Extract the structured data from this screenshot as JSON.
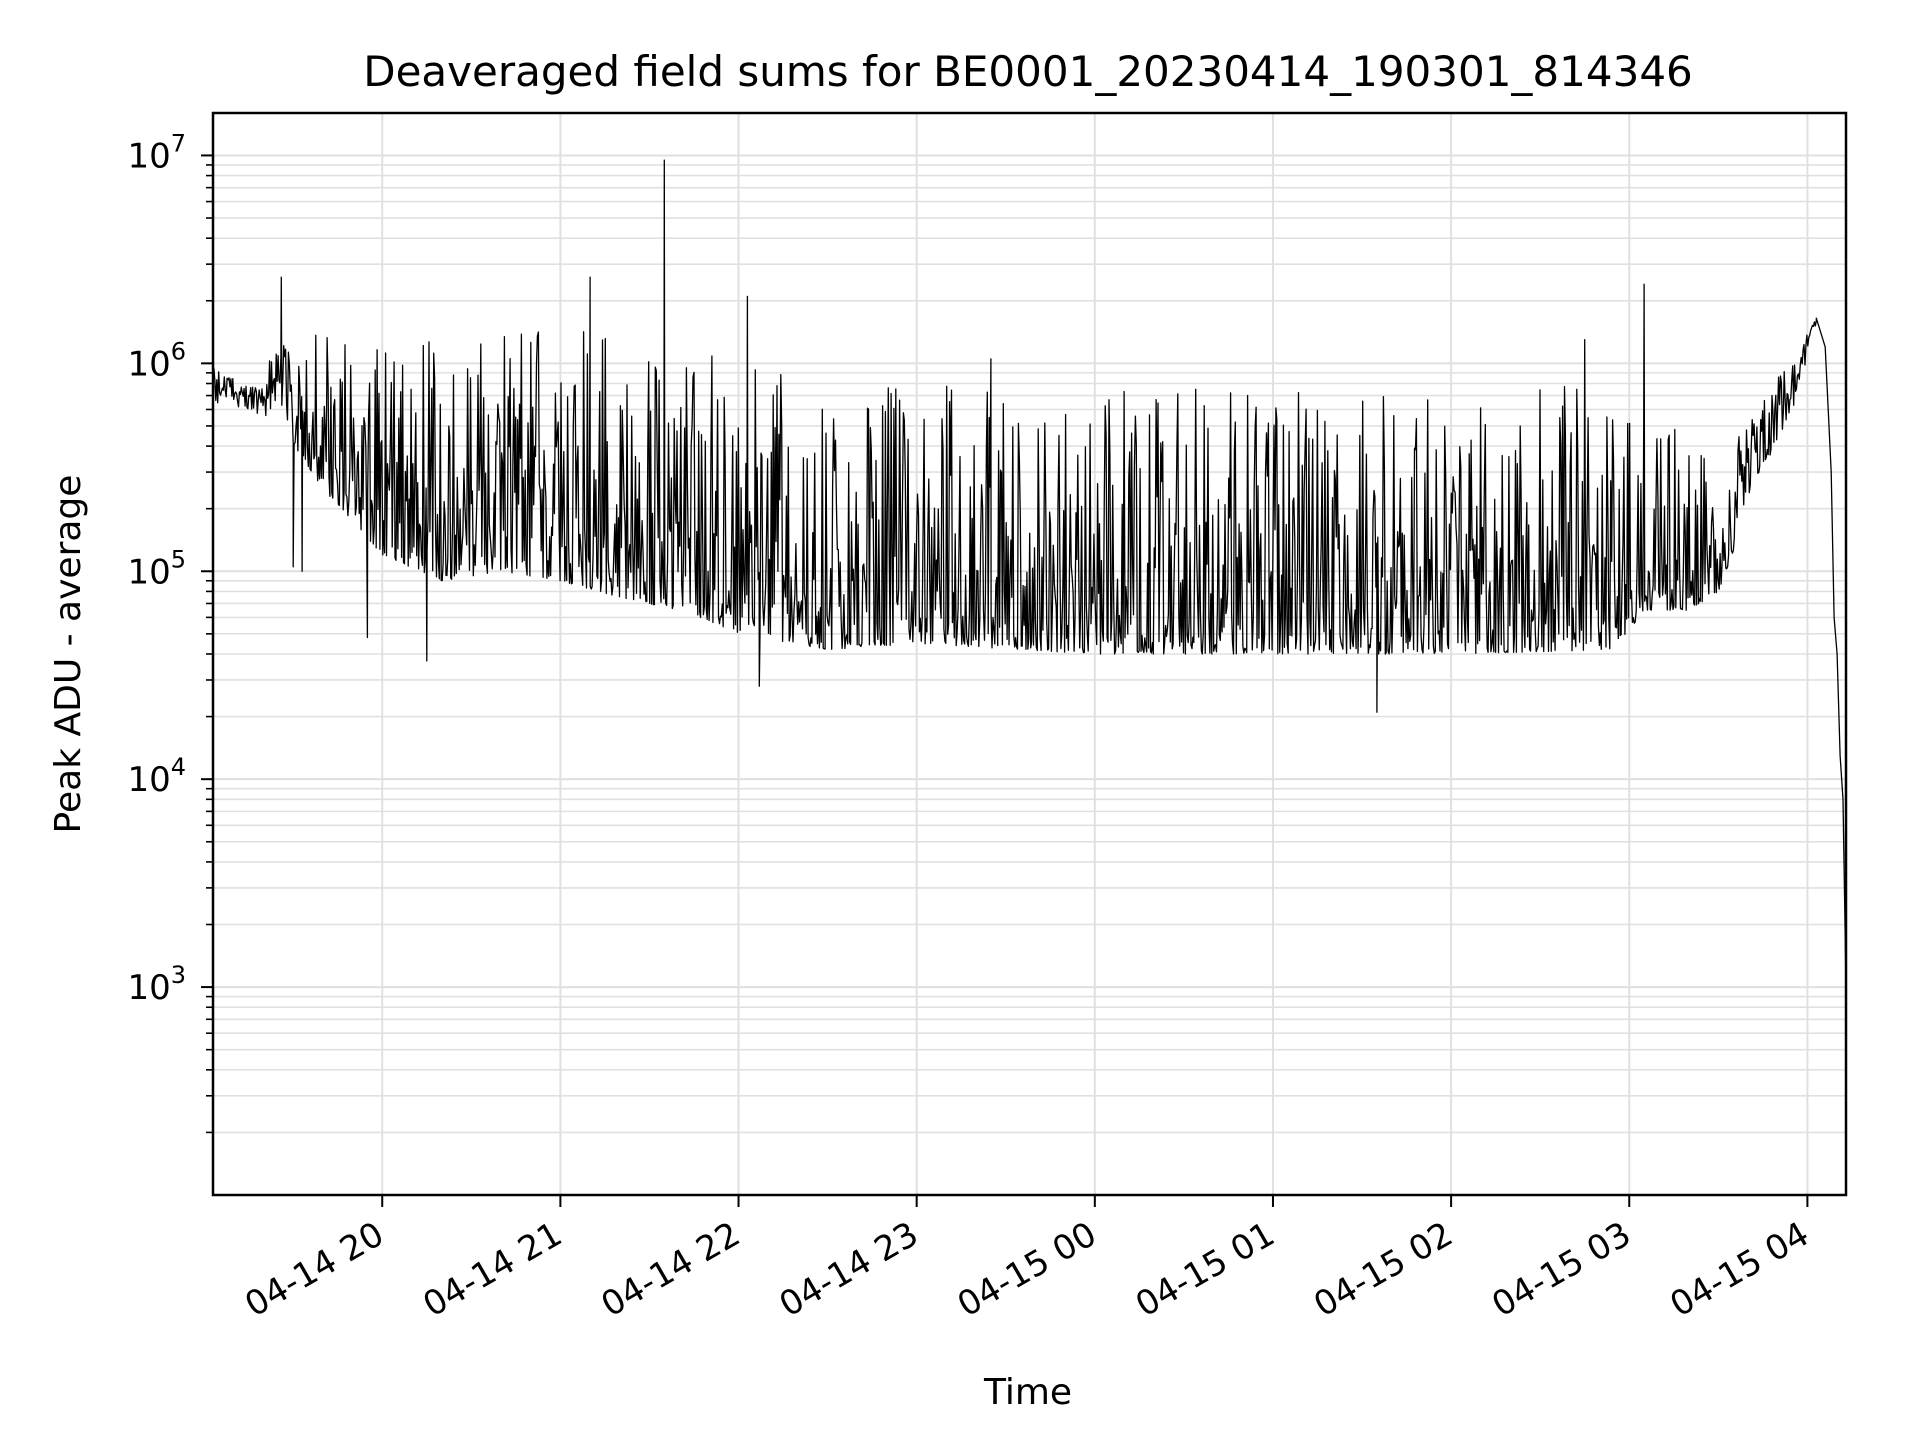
{
  "chart_data": {
    "type": "line",
    "title": "Deaveraged field sums for BE0001_20230414_190301_814346",
    "xlabel": "Time",
    "ylabel": "Peak ADU - average",
    "y_scale": "log",
    "ylim": [
      100,
      16000000
    ],
    "xlim": [
      "2023-04-14 19:03",
      "2023-04-15 04:13"
    ],
    "grid": true,
    "line_color": "#000000",
    "grid_color": "#e0e0e0",
    "x_ticks": [
      {
        "t": "2023-04-14 20:00",
        "label": "04-14 20"
      },
      {
        "t": "2023-04-14 21:00",
        "label": "04-14 21"
      },
      {
        "t": "2023-04-14 22:00",
        "label": "04-14 22"
      },
      {
        "t": "2023-04-14 23:00",
        "label": "04-14 23"
      },
      {
        "t": "2023-04-15 00:00",
        "label": "04-15 00"
      },
      {
        "t": "2023-04-15 01:00",
        "label": "04-15 01"
      },
      {
        "t": "2023-04-15 02:00",
        "label": "04-15 02"
      },
      {
        "t": "2023-04-15 03:00",
        "label": "04-15 03"
      },
      {
        "t": "2023-04-15 04:00",
        "label": "04-15 04"
      }
    ],
    "y_ticks": [
      {
        "value": 1000,
        "base": "10",
        "exp": "3"
      },
      {
        "value": 10000,
        "base": "10",
        "exp": "4"
      },
      {
        "value": 100000,
        "base": "10",
        "exp": "5"
      },
      {
        "value": 1000000,
        "base": "10",
        "exp": "6"
      },
      {
        "value": 10000000,
        "base": "10",
        "exp": "7"
      }
    ],
    "series": [
      {
        "name": "",
        "envelope": [
          {
            "t": "2023-04-14 19:03",
            "base": 650000,
            "peak": 950000
          },
          {
            "t": "2023-04-14 19:15",
            "base": 600000,
            "peak": 800000
          },
          {
            "t": "2023-04-14 19:26",
            "base": 500000,
            "peak": 1300000
          },
          {
            "t": "2023-04-14 19:40",
            "base": 250000,
            "peak": 1500000
          },
          {
            "t": "2023-04-14 20:00",
            "base": 120000,
            "peak": 1400000
          },
          {
            "t": "2023-04-14 20:20",
            "base": 90000,
            "peak": 1400000
          },
          {
            "t": "2023-04-14 20:40",
            "base": 100000,
            "peak": 1400000
          },
          {
            "t": "2023-04-14 21:00",
            "base": 90000,
            "peak": 1500000
          },
          {
            "t": "2023-04-14 21:20",
            "base": 75000,
            "peak": 1300000
          },
          {
            "t": "2023-04-14 21:40",
            "base": 65000,
            "peak": 1200000
          },
          {
            "t": "2023-04-14 22:00",
            "base": 50000,
            "peak": 1000000
          },
          {
            "t": "2023-04-14 22:30",
            "base": 42000,
            "peak": 800000
          },
          {
            "t": "2023-04-14 23:00",
            "base": 45000,
            "peak": 800000
          },
          {
            "t": "2023-04-15 00:00",
            "base": 40000,
            "peak": 750000
          },
          {
            "t": "2023-04-15 01:00",
            "base": 40000,
            "peak": 750000
          },
          {
            "t": "2023-04-15 02:00",
            "base": 40000,
            "peak": 750000
          },
          {
            "t": "2023-04-15 02:55",
            "base": 42000,
            "peak": 800000
          },
          {
            "t": "2023-04-15 03:05",
            "base": 65000,
            "peak": 600000
          },
          {
            "t": "2023-04-15 03:20",
            "base": 65000,
            "peak": 500000
          },
          {
            "t": "2023-04-15 03:30",
            "base": 80000,
            "peak": 300000
          },
          {
            "t": "2023-04-15 03:45",
            "base": 300000,
            "peak": 700000
          },
          {
            "t": "2023-04-15 03:56",
            "base": 650000,
            "peak": 1100000
          },
          {
            "t": "2023-04-15 04:03",
            "base": 1450000,
            "peak": 1650000
          }
        ],
        "spikes": [
          {
            "t": "2023-04-14 19:26",
            "value": 2600000
          },
          {
            "t": "2023-04-14 19:30",
            "value": 105000
          },
          {
            "t": "2023-04-14 19:33",
            "value": 100000
          },
          {
            "t": "2023-04-14 19:55",
            "value": 48000
          },
          {
            "t": "2023-04-14 20:15",
            "value": 37000
          },
          {
            "t": "2023-04-14 21:10",
            "value": 2600000
          },
          {
            "t": "2023-04-14 21:35",
            "value": 9500000
          },
          {
            "t": "2023-04-14 22:03",
            "value": 2100000
          },
          {
            "t": "2023-04-14 22:07",
            "value": 28000
          },
          {
            "t": "2023-04-14 23:25",
            "value": 1050000
          },
          {
            "t": "2023-04-15 01:35",
            "value": 21000
          },
          {
            "t": "2023-04-15 02:45",
            "value": 1300000
          },
          {
            "t": "2023-04-15 03:05",
            "value": 2400000
          }
        ],
        "tail": [
          {
            "t": "2023-04-15 04:03",
            "value": 1650000
          },
          {
            "t": "2023-04-15 04:06",
            "value": 1200000
          },
          {
            "t": "2023-04-15 04:08",
            "value": 300000
          },
          {
            "t": "2023-04-15 04:09",
            "value": 60000
          },
          {
            "t": "2023-04-15 04:10",
            "value": 40000
          },
          {
            "t": "2023-04-15 04:11",
            "value": 13000
          },
          {
            "t": "2023-04-15 04:12",
            "value": 8000
          },
          {
            "t": "2023-04-15 04:13",
            "value": 1000
          }
        ]
      }
    ]
  }
}
